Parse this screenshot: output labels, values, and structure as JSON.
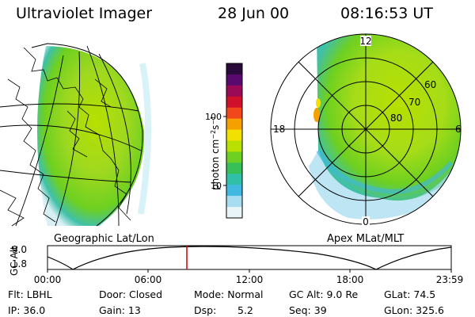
{
  "header": {
    "title": "Ultraviolet Imager",
    "date": "28 Jun 00",
    "time": "08:16:53 UT"
  },
  "panels": {
    "geo_label": "Geographic Lat/Lon",
    "apex_label": "Apex MLat/MLT"
  },
  "polar": {
    "mlt_labels": [
      "12",
      "18",
      "6",
      "0"
    ],
    "lat_labels": [
      "60",
      "70",
      "80"
    ]
  },
  "colorbar": {
    "unit_label": "photon cm",
    "unit_sup1": "−2",
    "unit_mid": "s",
    "unit_sup2": "−1",
    "ticks": [
      "100",
      "10"
    ],
    "colors": [
      "#2a0a3a",
      "#5a0a6e",
      "#9a0a56",
      "#d0102a",
      "#f0481a",
      "#f5a000",
      "#f2e000",
      "#b8e000",
      "#6ed020",
      "#38c058",
      "#30c0a8",
      "#40b8e0",
      "#a8dcf0",
      "#e8f4f8"
    ]
  },
  "orbit": {
    "axis_label": "GC Alt",
    "y_ticks": [
      "9.0",
      "1.8"
    ],
    "x_ticks": [
      "00:00",
      "06:00",
      "12:00",
      "18:00",
      "23:59"
    ],
    "marker_color": "#d00000"
  },
  "info": {
    "flt": "Flt: LBHL",
    "ip": "IP: 36.0",
    "door": "Door: Closed",
    "gain": "Gain: 13",
    "mode": "Mode: Normal",
    "dsp_label": "Dsp:",
    "dsp_val": "5.2",
    "gcalt": "GC Alt: 9.0 Re",
    "seq": "Seq: 39",
    "glat": "GLat:  74.5",
    "glon": "GLon: 325.6"
  }
}
